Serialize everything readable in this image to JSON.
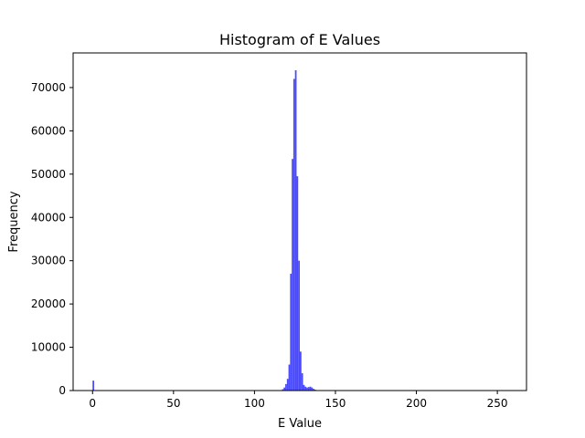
{
  "chart_data": {
    "type": "bar",
    "title": "Histogram of E Values",
    "xlabel": "E Value",
    "ylabel": "Frequency",
    "xlim": [
      -12,
      268
    ],
    "ylim": [
      0,
      78000
    ],
    "xticks": [
      0,
      50,
      100,
      150,
      200,
      250
    ],
    "yticks": [
      0,
      10000,
      20000,
      30000,
      40000,
      50000,
      60000,
      70000
    ],
    "grid": false,
    "legend": "none",
    "bar_color": "#4040ff",
    "bin_width": 1,
    "bins": [
      {
        "x": 0,
        "value": 2300
      },
      {
        "x": 117,
        "value": 300
      },
      {
        "x": 118,
        "value": 700
      },
      {
        "x": 119,
        "value": 1500
      },
      {
        "x": 120,
        "value": 2700
      },
      {
        "x": 121,
        "value": 6000
      },
      {
        "x": 122,
        "value": 27000
      },
      {
        "x": 123,
        "value": 53500
      },
      {
        "x": 124,
        "value": 72000
      },
      {
        "x": 125,
        "value": 74000
      },
      {
        "x": 126,
        "value": 49500
      },
      {
        "x": 127,
        "value": 30000
      },
      {
        "x": 128,
        "value": 9000
      },
      {
        "x": 129,
        "value": 4000
      },
      {
        "x": 130,
        "value": 1300
      },
      {
        "x": 131,
        "value": 900
      },
      {
        "x": 132,
        "value": 700
      },
      {
        "x": 133,
        "value": 800
      },
      {
        "x": 134,
        "value": 900
      },
      {
        "x": 135,
        "value": 700
      },
      {
        "x": 136,
        "value": 400
      },
      {
        "x": 137,
        "value": 200
      }
    ]
  }
}
